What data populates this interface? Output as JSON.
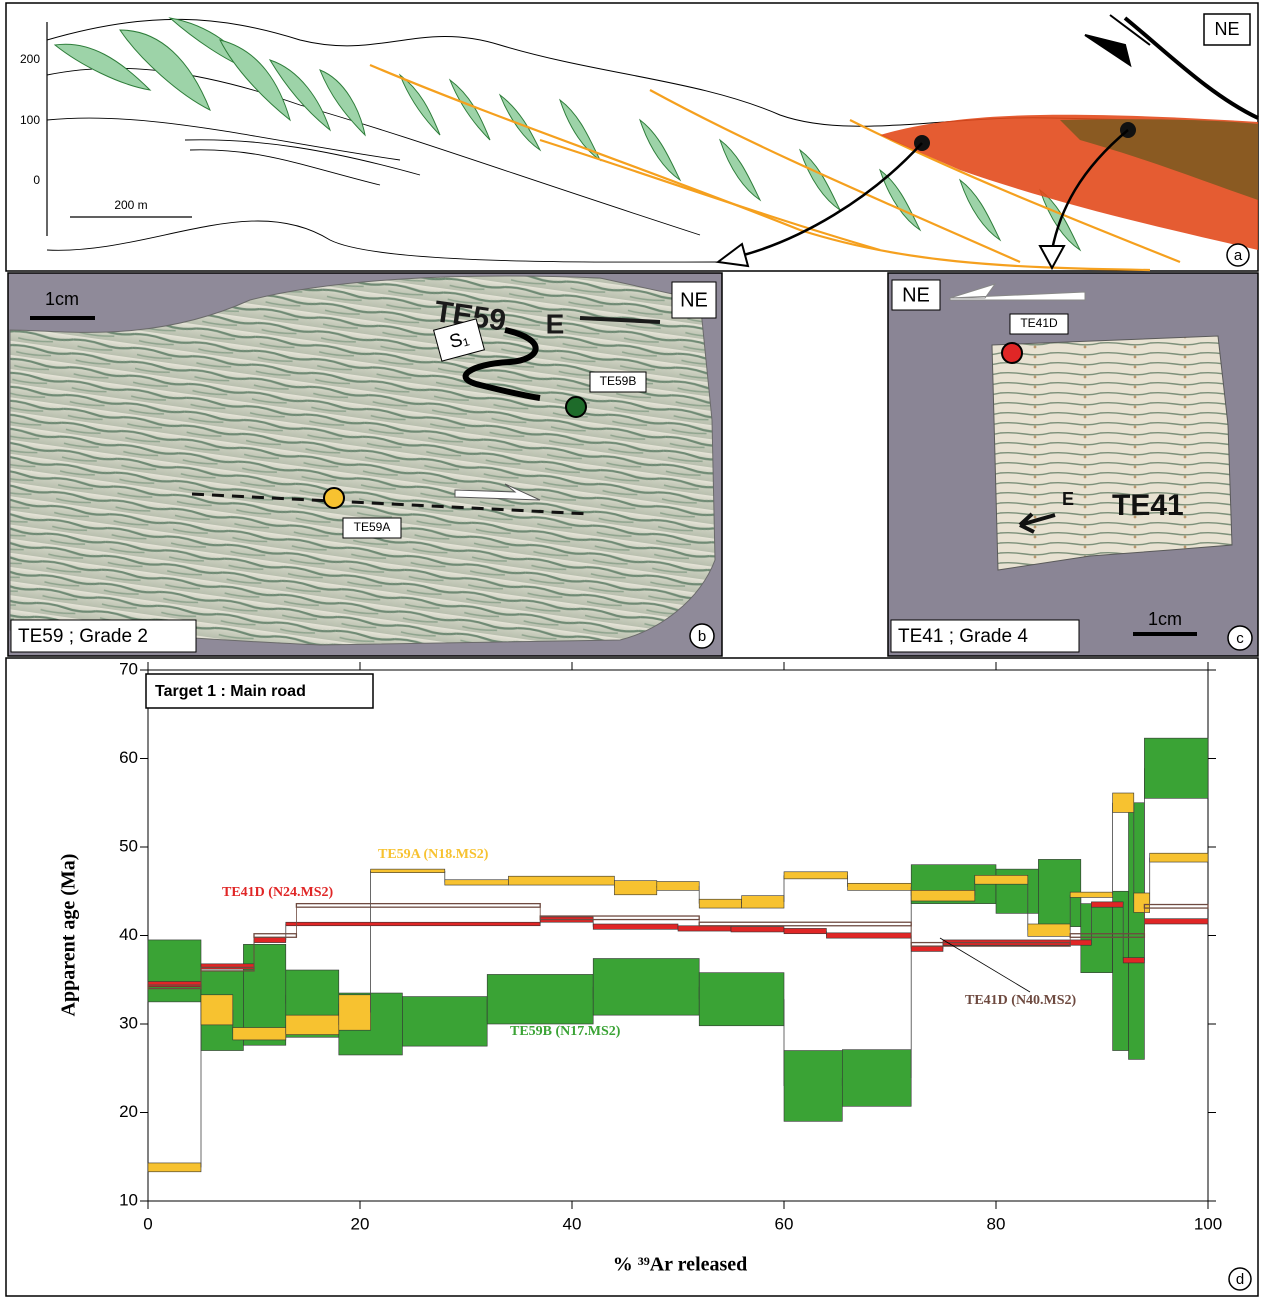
{
  "panel_a": {
    "axis_labels": [
      "200",
      "100",
      "0"
    ],
    "scale_bar": "200 m",
    "orientation": "NE",
    "panel_label": "a"
  },
  "panel_b": {
    "scale_bar": "1cm",
    "orientation": "NE",
    "sample_mark": "TE59",
    "direction_mark": "E",
    "foliation": "S₁",
    "point_labels": [
      "TE59B",
      "TE59A"
    ],
    "caption": "TE59 ; Grade 2",
    "panel_label": "b"
  },
  "panel_c": {
    "orientation": "NE",
    "point_label": "TE41D",
    "direction_mark": "E",
    "sample_mark": "TE41",
    "scale_bar": "1cm",
    "caption": "TE41 ; Grade 4",
    "panel_label": "c"
  },
  "chart_data": {
    "type": "age-spectrum",
    "annotation": "Target 1 : Main road",
    "panel_label": "d",
    "xlabel": "% ³⁹Ar released",
    "ylabel": "Apparent age (Ma)",
    "xlim": [
      0,
      100
    ],
    "xticks": [
      0,
      20,
      40,
      60,
      80,
      100
    ],
    "ylim": [
      10,
      70
    ],
    "yticks": [
      10,
      20,
      30,
      40,
      50,
      60,
      70
    ],
    "series": [
      {
        "name": "TE59B (N17.MS2)",
        "color": "#3aa335",
        "filled": true,
        "bins": [
          0,
          5,
          9,
          13,
          18,
          24,
          32,
          42,
          52,
          60,
          65.5,
          72,
          80,
          84,
          88,
          91,
          92.5,
          94,
          100
        ],
        "values": [
          36,
          31.5,
          33.3,
          32.3,
          30,
          30.3,
          32.8,
          34.2,
          32.8,
          23,
          23.9,
          45.8,
          45,
          44.8,
          39.7,
          36,
          40.5,
          58.9
        ],
        "errors": [
          3.5,
          4.5,
          5.7,
          3.8,
          3.5,
          2.8,
          2.8,
          3.2,
          3,
          4,
          3.2,
          2.2,
          2.5,
          3.8,
          3.9,
          9,
          14.5,
          3.4
        ]
      },
      {
        "name": "TE59A (N18.MS2)",
        "color": "#f7c230",
        "filled": true,
        "bins": [
          0,
          5,
          8,
          13,
          18,
          21,
          28,
          34,
          44,
          48,
          52,
          56,
          60,
          66,
          72,
          78,
          83,
          87,
          91,
          93,
          94.5,
          100
        ],
        "values": [
          13.8,
          31.6,
          28.9,
          29.9,
          31.3,
          47.3,
          46,
          46.2,
          45.4,
          45.6,
          43.6,
          43.8,
          46.8,
          45.5,
          44.5,
          46.3,
          40.6,
          44.6,
          55,
          43.7,
          48.8
        ],
        "errors": [
          0.5,
          1.7,
          0.7,
          1.1,
          2,
          0.2,
          0.3,
          0.5,
          0.8,
          0.5,
          0.5,
          0.7,
          0.4,
          0.4,
          0.6,
          0.5,
          0.7,
          0.3,
          1.1,
          1.1,
          0.5
        ]
      },
      {
        "name": "TE41D (N24.MS2)",
        "color": "#e02626",
        "filled": true,
        "bins": [
          0,
          5,
          10,
          13,
          37,
          42,
          50,
          55,
          60,
          64,
          72,
          75,
          89,
          92,
          94,
          100
        ],
        "values": [
          34.5,
          36.5,
          39.5,
          41.3,
          41.8,
          41,
          40.8,
          40.7,
          40.5,
          40,
          38.5,
          39.2,
          43.5,
          37.2,
          41.6
        ],
        "errors": [
          0.3,
          0.3,
          0.3,
          0.2,
          0.3,
          0.3,
          0.3,
          0.3,
          0.3,
          0.3,
          0.3,
          0.3,
          0.3,
          0.3,
          0.3
        ]
      },
      {
        "name": "TE41D (N40.MS2)",
        "color": "#6e4a40",
        "filled": false,
        "bins": [
          0,
          5,
          10,
          14,
          37,
          52,
          72,
          87,
          94,
          100
        ],
        "values": [
          34.2,
          36.2,
          40,
          43.4,
          42,
          41.3,
          39,
          40,
          43.3
        ],
        "errors": [
          0.2,
          0.2,
          0.2,
          0.2,
          0.2,
          0.2,
          0.2,
          0.2,
          0.2
        ]
      }
    ]
  }
}
